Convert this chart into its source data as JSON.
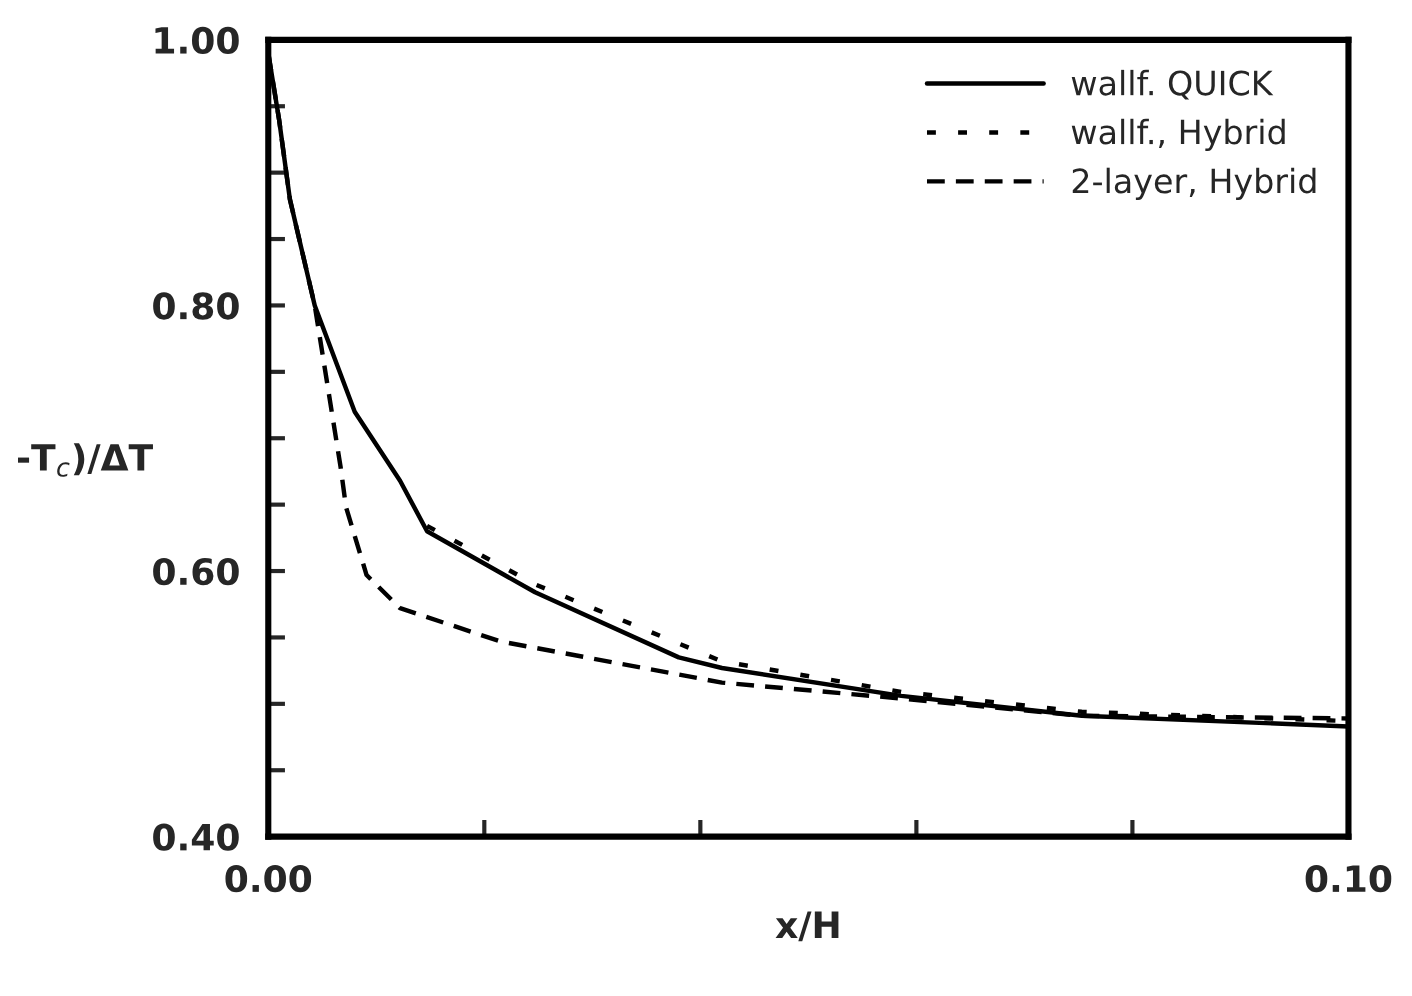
{
  "chart_data": {
    "type": "line",
    "xlabel": "x/H",
    "ylabel": "-T$_{c}$)/ΔT",
    "xlim": [
      0.0,
      0.1
    ],
    "xticks": [
      {
        "value": 0.0,
        "label": "0.00"
      },
      {
        "value": 0.02,
        "label": null
      },
      {
        "value": 0.04,
        "label": null
      },
      {
        "value": 0.06,
        "label": null
      },
      {
        "value": 0.08,
        "label": null
      },
      {
        "value": 0.1,
        "label": "0.10"
      }
    ],
    "ylim": [
      0.4,
      1.0
    ],
    "yticks": [
      {
        "value": 0.4,
        "label": "0.40"
      },
      {
        "value": 0.45,
        "label": null
      },
      {
        "value": 0.5,
        "label": null
      },
      {
        "value": 0.55,
        "label": null
      },
      {
        "value": 0.6,
        "label": "0.60"
      },
      {
        "value": 0.65,
        "label": null
      },
      {
        "value": 0.7,
        "label": null
      },
      {
        "value": 0.75,
        "label": null
      },
      {
        "value": 0.8,
        "label": "0.80"
      },
      {
        "value": 0.85,
        "label": null
      },
      {
        "value": 0.9,
        "label": null
      },
      {
        "value": 0.95,
        "label": null
      },
      {
        "value": 1.0,
        "label": "1.00"
      }
    ],
    "grid": false,
    "legend": "top right",
    "series": [
      {
        "name": "wallf. QUICK",
        "color": "#000000",
        "line_style": "solid",
        "x": [
          0.0,
          0.001,
          0.002,
          0.0043,
          0.008,
          0.0122,
          0.0147,
          0.0247,
          0.038,
          0.042,
          0.0586,
          0.0753,
          0.1
        ],
        "values": [
          0.99,
          0.94,
          0.88,
          0.8,
          0.72,
          0.668,
          0.63,
          0.584,
          0.535,
          0.527,
          0.506,
          0.491,
          0.483
        ]
      },
      {
        "name": "wallf., Hybrid",
        "color": "#000000",
        "line_style": "dotted",
        "x": [
          0.0147,
          0.0247,
          0.042,
          0.0586,
          0.0753,
          0.1
        ],
        "values": [
          0.634,
          0.59,
          0.532,
          0.509,
          0.494,
          0.487
        ]
      },
      {
        "name": "2-layer, Hybrid",
        "color": "#000000",
        "line_style": "dashed",
        "x": [
          0.0,
          0.001,
          0.002,
          0.0043,
          0.0067,
          0.0072,
          0.0091,
          0.0122,
          0.0215,
          0.042,
          0.0586,
          0.0753,
          0.1
        ],
        "values": [
          0.99,
          0.94,
          0.88,
          0.8,
          0.678,
          0.648,
          0.597,
          0.572,
          0.547,
          0.516,
          0.504,
          0.491,
          0.489
        ]
      }
    ]
  }
}
